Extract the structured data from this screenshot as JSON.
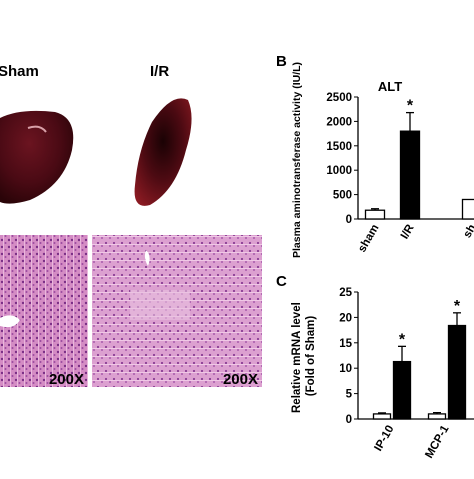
{
  "images": {
    "group_labels": [
      "Sham",
      "I/R"
    ],
    "magnification": "200X"
  },
  "chart_data": [
    {
      "type": "bar",
      "panel": "B",
      "title": "ALT",
      "y_label": "Plasma aminotransferase activity (IU/L)",
      "categories": [
        "sham",
        "I/R",
        "sh"
      ],
      "values": [
        180,
        1800,
        400
      ],
      "errors": [
        30,
        380,
        null
      ],
      "colors": [
        "#ffffff",
        "#000000",
        "#ffffff"
      ],
      "annotation": "*",
      "ylim": [
        0,
        2500
      ],
      "yticks": [
        0,
        500,
        1000,
        1500,
        2000,
        2500
      ]
    },
    {
      "type": "grouped-bar",
      "panel": "C",
      "y_label": [
        "Relative mRNA level",
        "(Fold of Sham)"
      ],
      "categories": [
        "IP-10",
        "MCP-1"
      ],
      "series": [
        {
          "color": "#ffffff",
          "values": [
            1,
            1
          ],
          "errors": [
            0.2,
            0.25
          ]
        },
        {
          "color": "#000000",
          "values": [
            11.3,
            18.4
          ],
          "errors": [
            3,
            2.5
          ]
        }
      ],
      "annotation": "*",
      "ylim": [
        0,
        25
      ],
      "yticks": [
        0,
        5,
        10,
        15,
        20,
        25
      ]
    }
  ]
}
